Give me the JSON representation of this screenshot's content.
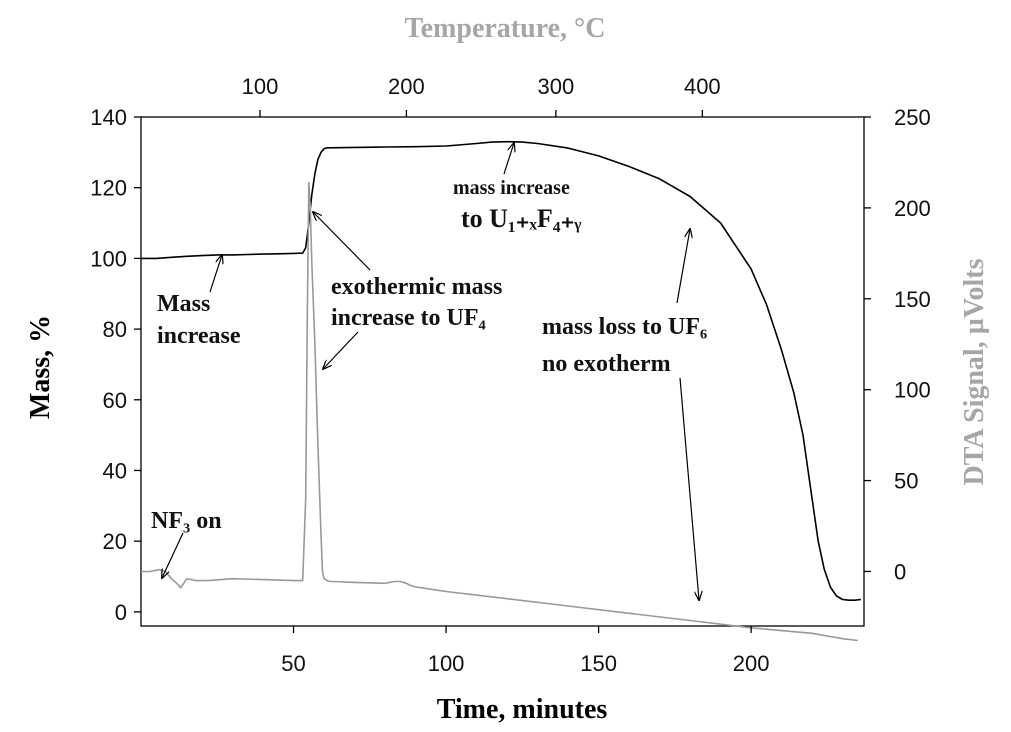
{
  "chart_data": {
    "type": "line",
    "title": "",
    "xlabel": "Time, minutes",
    "ylabel": "Mass, %",
    "y2label": "DTA Signal, µVolts",
    "x2label": "Temperature, °C",
    "xlim": [
      0,
      237
    ],
    "ylim": [
      -4,
      140
    ],
    "y2lim": [
      -30,
      250
    ],
    "xticks": [
      50,
      100,
      150,
      200
    ],
    "yticks": [
      0,
      20,
      40,
      60,
      80,
      100,
      120,
      140
    ],
    "y2ticks": [
      0,
      50,
      100,
      150,
      200,
      250
    ],
    "x2ticks": [
      {
        "label": "100",
        "time": 39
      },
      {
        "label": "200",
        "time": 87
      },
      {
        "label": "300",
        "time": 136
      },
      {
        "label": "400",
        "time": 184
      }
    ],
    "grid": false,
    "colors": {
      "mass": "#000000",
      "dta": "#999999",
      "axis_title_dta": "#a6a6a6"
    },
    "series": [
      {
        "axis": "left",
        "x": [
          0,
          5,
          10,
          15,
          20,
          25,
          30,
          35,
          40,
          45,
          50,
          53,
          54,
          55,
          56,
          57,
          58,
          59,
          60,
          61,
          62,
          70,
          80,
          90,
          100,
          110,
          115,
          120,
          125,
          130,
          140,
          150,
          160,
          170,
          180,
          190,
          200,
          205,
          210,
          214,
          217,
          220,
          222,
          224,
          226,
          228,
          230,
          232,
          234,
          236
        ],
        "y": [
          100,
          100,
          100.3,
          100.6,
          100.8,
          101,
          101,
          101.1,
          101.2,
          101.3,
          101.4,
          101.5,
          103,
          110,
          118,
          124,
          128,
          130,
          131,
          131.3,
          131.3,
          131.4,
          131.5,
          131.6,
          131.8,
          132.5,
          132.9,
          133,
          132.9,
          132.5,
          131.2,
          129,
          126,
          122.5,
          117.5,
          110,
          97,
          87,
          74,
          62,
          50,
          32,
          20,
          12,
          7,
          4.5,
          3.5,
          3.3,
          3.3,
          3.5
        ]
      },
      {
        "axis": "right",
        "x": [
          0,
          3,
          6,
          8,
          10,
          12,
          13,
          15,
          18,
          22,
          30,
          40,
          50,
          53,
          54,
          54.5,
          55,
          55.5,
          56,
          57,
          58,
          59,
          59.5,
          60,
          61,
          62,
          63,
          70,
          80,
          83,
          85,
          87,
          88,
          90,
          100,
          120,
          140,
          160,
          180,
          200,
          220,
          230,
          235
        ],
        "y": [
          0,
          0,
          1,
          0,
          -4,
          -7,
          -9,
          -4,
          -5,
          -5,
          -4,
          -4.5,
          -5,
          -5,
          40,
          140,
          214,
          200,
          170,
          125,
          70,
          20,
          0,
          -4,
          -5,
          -5.5,
          -5.5,
          -6,
          -6.5,
          -5.5,
          -5.5,
          -6.5,
          -7.5,
          -8.5,
          -11,
          -15,
          -19,
          -23,
          -27,
          -31,
          -34,
          -37,
          -38
        ]
      }
    ],
    "annotations": [
      {
        "lines": [
          "NF₃ on"
        ]
      },
      {
        "lines": [
          "Mass",
          "increase"
        ]
      },
      {
        "lines": [
          "exothermic mass",
          "increase to UF₄"
        ]
      },
      {
        "lines": [
          "mass increase",
          "to U₁₊ₓF₄₊ᵧ"
        ]
      },
      {
        "lines": [
          "mass loss to UF₆",
          "no exotherm"
        ]
      }
    ]
  }
}
